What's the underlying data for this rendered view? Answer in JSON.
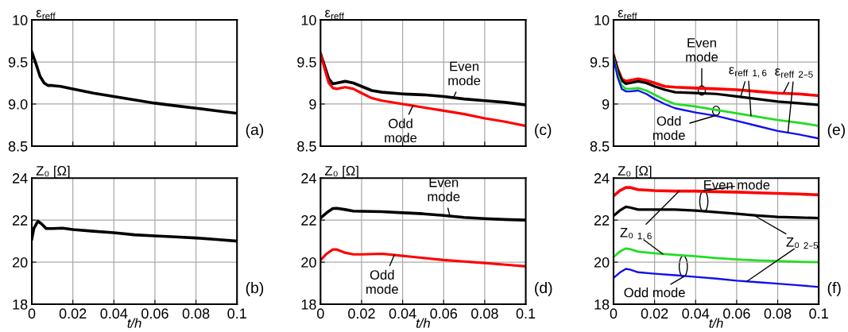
{
  "chart_data": [
    {
      "type": "line",
      "ylabel": "ε$_{reff}$",
      "tick_labels": "y",
      "grid": true,
      "x": [
        0,
        0.002,
        0.004,
        0.006,
        0.008,
        0.01,
        0.014,
        0.02,
        0.03,
        0.04,
        0.05,
        0.06,
        0.07,
        0.08,
        0.09,
        0.1
      ],
      "series": [
        {
          "color": "#000000",
          "values": [
            9.62,
            9.48,
            9.33,
            9.25,
            9.22,
            9.22,
            9.21,
            9.18,
            9.13,
            9.09,
            9.05,
            9.01,
            8.98,
            8.95,
            8.92,
            8.89
          ]
        }
      ],
      "xlim": [
        0,
        0.1
      ],
      "xticks": [
        0,
        0.02,
        0.04,
        0.06,
        0.08,
        0.1
      ],
      "ylim": [
        8.5,
        10
      ],
      "yticks": [
        8.5,
        {
          "value": 9,
          "label": "9.0"
        },
        9.5,
        10
      ],
      "annotations": [
        "(a)"
      ]
    },
    {
      "type": "line",
      "ylabel": "ε$_{reff}$",
      "tick_labels": "y",
      "grid": true,
      "x": [
        0,
        0.002,
        0.004,
        0.006,
        0.008,
        0.012,
        0.016,
        0.02,
        0.025,
        0.03,
        0.04,
        0.05,
        0.06,
        0.07,
        0.08,
        0.09,
        0.1
      ],
      "series": [
        {
          "color": "#000000",
          "values": [
            9.6,
            9.45,
            9.3,
            9.24,
            9.25,
            9.27,
            9.25,
            9.21,
            9.16,
            9.14,
            9.12,
            9.11,
            9.09,
            9.06,
            9.04,
            9.02,
            8.99
          ]
        },
        {
          "color": "#ff0000",
          "values": [
            9.6,
            9.42,
            9.25,
            9.19,
            9.18,
            9.2,
            9.18,
            9.13,
            9.07,
            9.04,
            9.0,
            8.96,
            8.92,
            8.88,
            8.83,
            8.79,
            8.74
          ]
        }
      ],
      "xlim": [
        0,
        0.1
      ],
      "xticks": [
        0,
        0.02,
        0.04,
        0.06,
        0.08,
        0.1
      ],
      "ylim": [
        8.5,
        10
      ],
      "yticks": [
        8.5,
        9,
        9.5,
        10
      ],
      "annotations": [
        "(c)",
        {
          "text": "Even\nmode",
          "x": 0.065,
          "y": 9.09
        },
        {
          "text": "Odd\nmode",
          "x": 0.045,
          "y": 8.98
        }
      ]
    },
    {
      "type": "line",
      "ylabel": "ε$_{reff}$",
      "tick_labels": "y",
      "grid": true,
      "x": [
        0,
        0.002,
        0.004,
        0.006,
        0.008,
        0.012,
        0.016,
        0.02,
        0.025,
        0.03,
        0.04,
        0.05,
        0.06,
        0.07,
        0.08,
        0.09,
        0.1
      ],
      "series": [
        {
          "color": "#ff0000",
          "values": [
            9.58,
            9.42,
            9.3,
            9.27,
            9.28,
            9.3,
            9.28,
            9.25,
            9.21,
            9.2,
            9.19,
            9.18,
            9.17,
            9.15,
            9.13,
            9.12,
            9.1
          ]
        },
        {
          "color": "#000000",
          "values": [
            9.58,
            9.4,
            9.28,
            9.24,
            9.25,
            9.27,
            9.25,
            9.21,
            9.17,
            9.14,
            9.13,
            9.12,
            9.09,
            9.06,
            9.03,
            9.01,
            8.99
          ]
        },
        {
          "color": "#22dd22",
          "values": [
            9.55,
            9.35,
            9.22,
            9.18,
            9.18,
            9.19,
            9.16,
            9.11,
            9.05,
            9.0,
            8.97,
            8.93,
            8.89,
            8.85,
            8.81,
            8.78,
            8.74
          ]
        },
        {
          "color": "#1010ee",
          "values": [
            9.54,
            9.32,
            9.18,
            9.15,
            9.15,
            9.16,
            9.12,
            9.06,
            9.0,
            8.95,
            8.9,
            8.86,
            8.8,
            8.74,
            8.68,
            8.64,
            8.59
          ]
        }
      ],
      "xlim": [
        0,
        0.1
      ],
      "xticks": [
        0,
        0.02,
        0.04,
        0.06,
        0.08,
        0.1
      ],
      "ylim": [
        8.5,
        10
      ],
      "yticks": [
        8.5,
        9,
        9.5,
        10
      ],
      "annotations": [
        "(e)",
        {
          "text": "Even\nmode",
          "x": 0.043,
          "y": 9.16
        },
        {
          "text": "Odd\nmode",
          "x": 0.05,
          "y": 8.92
        },
        {
          "text": "ε$_{reff}$ $_{1,6}$",
          "x": 0.062,
          "y": 9.09
        },
        {
          "text": "ε$_{reff}$ $_{2–5}$",
          "x": 0.083,
          "y": 9.14
        }
      ]
    },
    {
      "type": "line",
      "ylabel": "Z₀ [Ω]",
      "xlabel": "t/h",
      "grid": true,
      "x": [
        0,
        0.001,
        0.003,
        0.005,
        0.007,
        0.01,
        0.015,
        0.02,
        0.03,
        0.04,
        0.05,
        0.06,
        0.07,
        0.08,
        0.09,
        0.1
      ],
      "series": [
        {
          "color": "#000000",
          "values": [
            21.1,
            21.6,
            21.95,
            21.8,
            21.6,
            21.6,
            21.62,
            21.55,
            21.47,
            21.4,
            21.3,
            21.25,
            21.2,
            21.15,
            21.08,
            21.0
          ]
        }
      ],
      "xlim": [
        0,
        0.1
      ],
      "xticks": [
        0,
        0.02,
        0.04,
        0.06,
        0.08,
        0.1
      ],
      "ylim": [
        18,
        24
      ],
      "yticks": [
        18,
        20,
        22,
        24
      ],
      "annotations": [
        "(b)"
      ]
    },
    {
      "type": "line",
      "ylabel": "Z₀ [Ω]",
      "xlabel": "t/h",
      "grid": true,
      "x": [
        0,
        0.003,
        0.006,
        0.008,
        0.012,
        0.016,
        0.02,
        0.03,
        0.04,
        0.05,
        0.06,
        0.07,
        0.08,
        0.09,
        0.1
      ],
      "series": [
        {
          "color": "#000000",
          "values": [
            22.1,
            22.35,
            22.55,
            22.56,
            22.5,
            22.43,
            22.42,
            22.4,
            22.35,
            22.3,
            22.22,
            22.13,
            22.07,
            22.03,
            22.0
          ]
        },
        {
          "color": "#ff0000",
          "values": [
            20.1,
            20.4,
            20.6,
            20.6,
            20.45,
            20.37,
            20.37,
            20.4,
            20.3,
            20.2,
            20.1,
            20.03,
            19.96,
            19.88,
            19.8
          ]
        }
      ],
      "xlim": [
        0,
        0.1
      ],
      "xticks": [
        0,
        0.02,
        0.04,
        0.06,
        0.08,
        0.1
      ],
      "ylim": [
        18,
        24
      ],
      "yticks": [
        18,
        20,
        22,
        24
      ],
      "annotations": [
        "(d)",
        {
          "text": "Even\nmode",
          "x": 0.063,
          "y": 22.2
        },
        {
          "text": "Odd\nmode",
          "x": 0.036,
          "y": 20.35
        }
      ]
    },
    {
      "type": "line",
      "ylabel": "Z₀ [Ω]",
      "xlabel": "t/h",
      "grid": true,
      "x": [
        0,
        0.003,
        0.006,
        0.008,
        0.012,
        0.02,
        0.03,
        0.04,
        0.05,
        0.06,
        0.07,
        0.08,
        0.09,
        0.1
      ],
      "series": [
        {
          "color": "#ff0000",
          "values": [
            23.15,
            23.4,
            23.55,
            23.55,
            23.45,
            23.4,
            23.38,
            23.38,
            23.35,
            23.33,
            23.3,
            23.27,
            23.24,
            23.2
          ]
        },
        {
          "color": "#000000",
          "values": [
            22.2,
            22.45,
            22.63,
            22.6,
            22.5,
            22.5,
            22.5,
            22.45,
            22.38,
            22.3,
            22.22,
            22.15,
            22.12,
            22.1
          ]
        },
        {
          "color": "#22dd22",
          "values": [
            20.25,
            20.5,
            20.65,
            20.62,
            20.5,
            20.42,
            20.35,
            20.28,
            20.2,
            20.13,
            20.08,
            20.05,
            20.02,
            20.0
          ]
        },
        {
          "color": "#1010ee",
          "values": [
            19.25,
            19.5,
            19.68,
            19.65,
            19.52,
            19.45,
            19.38,
            19.3,
            19.22,
            19.12,
            19.05,
            18.98,
            18.9,
            18.82
          ]
        }
      ],
      "xlim": [
        0,
        0.1
      ],
      "xticks": [
        0,
        0.02,
        0.04,
        0.06,
        0.08,
        0.1
      ],
      "ylim": [
        18,
        24
      ],
      "yticks": [
        18,
        20,
        22,
        24
      ],
      "annotations": [
        "(f)",
        {
          "text": "Even mode",
          "x": 0.044,
          "y": 22.9
        },
        {
          "text": "Odd mode",
          "x": 0.034,
          "y": 19.8
        },
        {
          "text": "Z₀ $_{1,6}$",
          "x": 0.032,
          "y": 23.38
        },
        {
          "text": "Z₀ $_{2–5}$",
          "x": 0.068,
          "y": 22.25
        }
      ]
    }
  ]
}
